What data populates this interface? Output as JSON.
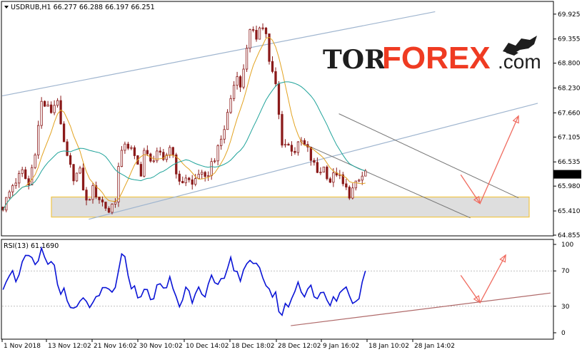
{
  "header": {
    "symbol_line": "USDRUB,H1  66.277 66.288 66.197 66.251",
    "rsi_line": "RSI(13) 61.1690"
  },
  "logo": {
    "text_dark": "TOR",
    "text_accent": "FOREX",
    "text_dot": ".com",
    "icon": "bull-bear-icon",
    "accent_color": "#ef3b22"
  },
  "colors": {
    "candle": "#8b1a1a",
    "ma_fast": "#e2a21f",
    "ma_slow": "#1fa39a",
    "rsi": "#0a14d6",
    "channel": "#9fb5cf",
    "arrow": "#f06b5f",
    "zone_border": "#f0c548",
    "zone_fill": "#d8d8d8",
    "trend_dark": "#777777",
    "rsi_trend": "#b06a6a"
  },
  "chart_data": [
    {
      "type": "candlestick",
      "title": "USDRUB,H1",
      "ylim": [
        64.855,
        70.2
      ],
      "price_ticks": [
        "69.925",
        "69.355",
        "68.800",
        "68.230",
        "67.660",
        "67.105",
        "66.535",
        "65.980",
        "65.410",
        "64.855"
      ],
      "price_tick_values": [
        69.925,
        69.355,
        68.8,
        68.23,
        67.66,
        67.105,
        66.535,
        65.98,
        65.41,
        64.855
      ],
      "current_price": "66.251",
      "x_labels": [
        "1 Nov 2018",
        "13 Nov 12:02",
        "21 Nov 16:02",
        "30 Nov 10:02",
        "10 Dec 14:02",
        "18 Dec 18:02",
        "28 Dec 12:02",
        "9 Jan 16:02",
        "18 Jan 10:02",
        "28 Jan 14:02"
      ],
      "close_path": [
        [
          0,
          65.5
        ],
        [
          3,
          66.0
        ],
        [
          6,
          66.3
        ],
        [
          8,
          66.0
        ],
        [
          10,
          66.8
        ],
        [
          12,
          67.9
        ],
        [
          15,
          67.7
        ],
        [
          17,
          68.0
        ],
        [
          18,
          67.3
        ],
        [
          20,
          66.6
        ],
        [
          22,
          66.2
        ],
        [
          24,
          66.3
        ],
        [
          26,
          65.6
        ],
        [
          28,
          65.9
        ],
        [
          31,
          65.6
        ],
        [
          33,
          65.4
        ],
        [
          35,
          65.7
        ],
        [
          36,
          66.4
        ],
        [
          38,
          67.0
        ],
        [
          40,
          66.8
        ],
        [
          41,
          66.6
        ],
        [
          43,
          66.3
        ],
        [
          44,
          66.8
        ],
        [
          46,
          66.5
        ],
        [
          48,
          66.8
        ],
        [
          50,
          66.5
        ],
        [
          52,
          66.9
        ],
        [
          53,
          66.7
        ],
        [
          55,
          66.0
        ],
        [
          57,
          66.2
        ],
        [
          59,
          66.0
        ],
        [
          61,
          66.3
        ],
        [
          63,
          66.1
        ],
        [
          65,
          66.5
        ],
        [
          67,
          66.8
        ],
        [
          69,
          67.3
        ],
        [
          71,
          68.0
        ],
        [
          73,
          68.6
        ],
        [
          74,
          68.2
        ],
        [
          76,
          69.2
        ],
        [
          77,
          69.5
        ],
        [
          79,
          69.4
        ],
        [
          80,
          69.7
        ],
        [
          82,
          69.5
        ],
        [
          83,
          68.8
        ],
        [
          85,
          68.3
        ],
        [
          86,
          67.6
        ],
        [
          87,
          67.0
        ],
        [
          89,
          66.9
        ],
        [
          91,
          66.8
        ],
        [
          93,
          67.0
        ],
        [
          95,
          66.8
        ],
        [
          96,
          66.6
        ],
        [
          98,
          66.3
        ],
        [
          100,
          66.4
        ],
        [
          102,
          66.1
        ],
        [
          104,
          66.3
        ],
        [
          106,
          66.0
        ],
        [
          108,
          65.8
        ],
        [
          110,
          66.0
        ],
        [
          112,
          66.2
        ],
        [
          113,
          66.3
        ]
      ],
      "channel_upper": [
        [
          0,
          68.05
        ],
        [
          135,
          69.98
        ]
      ],
      "channel_lower": [
        [
          27,
          65.22
        ],
        [
          167,
          67.88
        ]
      ],
      "down_channel_top": [
        [
          105,
          67.64
        ],
        [
          161,
          65.71
        ]
      ],
      "down_channel_bottom": [
        [
          94,
          66.95
        ],
        [
          146,
          65.25
        ]
      ],
      "support_zone": [
        65.27,
        65.73
      ],
      "forecast_arrow_1": [
        [
          143,
          66.24
        ],
        [
          149,
          65.58
        ]
      ],
      "forecast_arrow_2": [
        [
          149,
          65.58
        ],
        [
          161,
          67.59
        ]
      ]
    },
    {
      "type": "line",
      "title": "RSI(13)",
      "ylim": [
        0,
        100
      ],
      "ticks": [
        "100",
        "70",
        "30",
        "0"
      ],
      "tick_values": [
        100,
        70,
        30,
        0
      ],
      "path": [
        [
          0,
          55
        ],
        [
          2,
          70
        ],
        [
          4,
          62
        ],
        [
          6,
          78
        ],
        [
          8,
          85
        ],
        [
          10,
          72
        ],
        [
          12,
          90
        ],
        [
          14,
          80
        ],
        [
          16,
          76
        ],
        [
          17,
          55
        ],
        [
          19,
          45
        ],
        [
          20,
          30
        ],
        [
          22,
          24
        ],
        [
          24,
          32
        ],
        [
          26,
          38
        ],
        [
          28,
          28
        ],
        [
          30,
          40
        ],
        [
          32,
          50
        ],
        [
          34,
          44
        ],
        [
          36,
          66
        ],
        [
          37,
          84
        ],
        [
          38,
          80
        ],
        [
          40,
          56
        ],
        [
          42,
          40
        ],
        [
          44,
          53
        ],
        [
          46,
          34
        ],
        [
          48,
          55
        ],
        [
          50,
          46
        ],
        [
          52,
          60
        ],
        [
          54,
          42
        ],
        [
          55,
          30
        ],
        [
          57,
          50
        ],
        [
          59,
          40
        ],
        [
          61,
          56
        ],
        [
          63,
          45
        ],
        [
          65,
          60
        ],
        [
          67,
          48
        ],
        [
          69,
          62
        ],
        [
          71,
          80
        ],
        [
          73,
          74
        ],
        [
          74,
          60
        ],
        [
          76,
          82
        ],
        [
          77,
          76
        ],
        [
          79,
          72
        ],
        [
          81,
          66
        ],
        [
          83,
          48
        ],
        [
          85,
          40
        ],
        [
          86,
          30
        ],
        [
          87,
          20
        ],
        [
          88,
          28
        ],
        [
          90,
          40
        ],
        [
          92,
          54
        ],
        [
          94,
          46
        ],
        [
          96,
          54
        ],
        [
          98,
          36
        ],
        [
          100,
          44
        ],
        [
          102,
          30
        ],
        [
          104,
          40
        ],
        [
          106,
          52
        ],
        [
          108,
          46
        ],
        [
          110,
          32
        ],
        [
          112,
          56
        ],
        [
          113,
          68
        ]
      ],
      "trend": [
        [
          90,
          8
        ],
        [
          171,
          45
        ]
      ],
      "arrow_1": [
        [
          143,
          65
        ],
        [
          149,
          34
        ]
      ],
      "arrow_2": [
        [
          149,
          34
        ],
        [
          157,
          88
        ]
      ]
    }
  ]
}
